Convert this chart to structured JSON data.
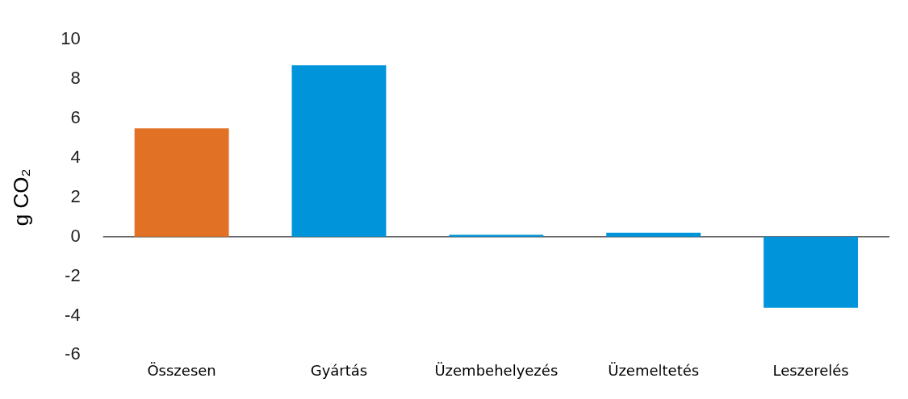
{
  "chart_data": {
    "type": "bar",
    "ylabel": "g CO₂",
    "categories": [
      "Összesen",
      "Gyártás",
      "Üzembehelyezés",
      "Üzemeltetés",
      "Leszerelés"
    ],
    "values": [
      5.5,
      8.7,
      0.1,
      0.2,
      -3.6
    ],
    "colors": [
      "#e07125",
      "#0095da",
      "#0095da",
      "#0095da",
      "#0095da"
    ],
    "ylim": [
      -6,
      10
    ],
    "yticks": [
      -6,
      -4,
      -2,
      0,
      2,
      4,
      6,
      8,
      10
    ],
    "grid": false,
    "legend": false,
    "ref_lines": [
      {
        "axis": "y",
        "value": 0,
        "color": "#595959"
      }
    ]
  }
}
